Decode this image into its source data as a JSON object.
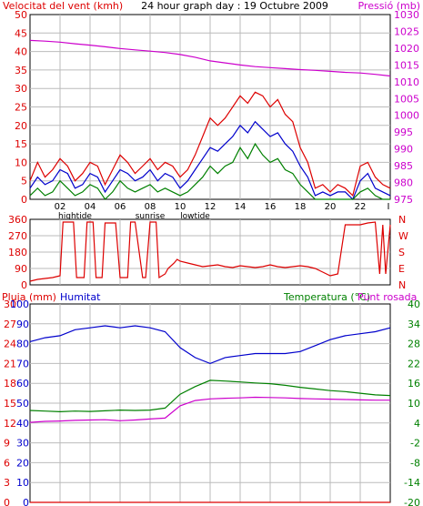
{
  "colors": {
    "red": "#dd0000",
    "blue": "#0000cc",
    "green": "#008000",
    "magenta": "#cc00cc",
    "grid": "#bbbbbb",
    "frame": "#000000"
  },
  "header": {
    "left": "Velocitat del vent (kmh)",
    "center": "24 hour graph day : 19 Octubre 2009",
    "right": "Pressió (mb)"
  },
  "x_ticks": [
    "02",
    "04",
    "06",
    "08",
    "10",
    "12",
    "14",
    "16",
    "18",
    "20",
    "22"
  ],
  "x_end": "I",
  "tide_labels": [
    {
      "text": "hightide",
      "hour": 3.0
    },
    {
      "text": "sunrise",
      "hour": 8.0
    },
    {
      "text": "lowtide",
      "hour": 11.0
    }
  ],
  "chart_data": [
    {
      "type": "line",
      "title": "24 hour graph day : 19 Octubre 2009",
      "y_left": {
        "label": "Velocitat del vent (kmh)",
        "range": [
          0,
          50
        ],
        "ticks": [
          0,
          5,
          10,
          15,
          20,
          25,
          30,
          35,
          40,
          45,
          50
        ]
      },
      "y_right": {
        "label": "Pressió (mb)",
        "range": [
          975,
          1030
        ],
        "ticks": [
          975,
          980,
          985,
          990,
          995,
          1000,
          1005,
          1010,
          1015,
          1020,
          1025,
          1030
        ]
      },
      "x_range": [
        0,
        24
      ],
      "pressure": {
        "axis": "right",
        "x": [
          0,
          1,
          2,
          3,
          4,
          5,
          6,
          7,
          8,
          9,
          10,
          11,
          12,
          13,
          14,
          15,
          16,
          17,
          18,
          19,
          20,
          21,
          22,
          23,
          24
        ],
        "values": [
          1022.3,
          1022.1,
          1021.8,
          1021.3,
          1020.9,
          1020.4,
          1019.9,
          1019.5,
          1019.1,
          1018.7,
          1018.1,
          1017.3,
          1016.2,
          1015.6,
          1015.0,
          1014.5,
          1014.2,
          1013.9,
          1013.6,
          1013.4,
          1013.1,
          1012.8,
          1012.6,
          1012.2,
          1011.7
        ]
      },
      "gust": {
        "axis": "left",
        "x": [
          0,
          0.5,
          1,
          1.5,
          2,
          2.5,
          3,
          3.5,
          4,
          4.5,
          5,
          5.5,
          6,
          6.5,
          7,
          7.5,
          8,
          8.5,
          9,
          9.5,
          10,
          10.5,
          11,
          11.5,
          12,
          12.5,
          13,
          13.5,
          14,
          14.5,
          15,
          15.5,
          16,
          16.5,
          17,
          17.5,
          18,
          18.5,
          19,
          19.5,
          20,
          20.5,
          21,
          21.5,
          22,
          22.5,
          23,
          23.5,
          24
        ],
        "values": [
          5,
          10,
          6,
          8,
          11,
          9,
          5,
          7,
          10,
          9,
          4,
          8,
          12,
          10,
          7,
          9,
          11,
          8,
          10,
          9,
          6,
          8,
          12,
          17,
          22,
          20,
          22,
          25,
          28,
          26,
          29,
          28,
          25,
          27,
          23,
          21,
          14,
          10,
          3,
          4,
          2,
          4,
          3,
          1,
          9,
          10,
          6,
          4,
          3
        ]
      },
      "wind_avg": {
        "axis": "left",
        "x": [
          0,
          0.5,
          1,
          1.5,
          2,
          2.5,
          3,
          3.5,
          4,
          4.5,
          5,
          5.5,
          6,
          6.5,
          7,
          7.5,
          8,
          8.5,
          9,
          9.5,
          10,
          10.5,
          11,
          11.5,
          12,
          12.5,
          13,
          13.5,
          14,
          14.5,
          15,
          15.5,
          16,
          16.5,
          17,
          17.5,
          18,
          18.5,
          19,
          19.5,
          20,
          20.5,
          21,
          21.5,
          22,
          22.5,
          23,
          23.5,
          24
        ],
        "values": [
          3,
          6,
          4,
          5,
          8,
          7,
          3,
          4,
          7,
          6,
          2,
          5,
          8,
          7,
          5,
          6,
          8,
          5,
          7,
          6,
          3,
          5,
          8,
          11,
          14,
          13,
          15,
          17,
          20,
          18,
          21,
          19,
          17,
          18,
          15,
          13,
          9,
          6,
          1,
          2,
          1,
          2,
          2,
          0,
          5,
          7,
          3,
          2,
          1
        ]
      },
      "wind_min": {
        "axis": "left",
        "x": [
          0,
          0.5,
          1,
          1.5,
          2,
          2.5,
          3,
          3.5,
          4,
          4.5,
          5,
          5.5,
          6,
          6.5,
          7,
          7.5,
          8,
          8.5,
          9,
          9.5,
          10,
          10.5,
          11,
          11.5,
          12,
          12.5,
          13,
          13.5,
          14,
          14.5,
          15,
          15.5,
          16,
          16.5,
          17,
          17.5,
          18,
          18.5,
          19,
          19.5,
          20,
          20.5,
          21,
          21.5,
          22,
          22.5,
          23,
          23.5,
          24
        ],
        "values": [
          1,
          3,
          1,
          2,
          5,
          3,
          1,
          2,
          4,
          3,
          0,
          2,
          5,
          3,
          2,
          3,
          4,
          2,
          3,
          2,
          1,
          2,
          4,
          6,
          9,
          7,
          9,
          10,
          14,
          11,
          15,
          12,
          10,
          11,
          8,
          7,
          4,
          2,
          0,
          0,
          0,
          0,
          0,
          0,
          2,
          3,
          1,
          0,
          0
        ]
      }
    },
    {
      "type": "line",
      "title": "",
      "y_left": {
        "label": "",
        "range": [
          0,
          360
        ],
        "ticks": [
          0,
          90,
          180,
          270,
          360
        ]
      },
      "y_right": {
        "label": "",
        "ticks": [
          "N",
          "E",
          "S",
          "W",
          "N"
        ]
      },
      "x_range": [
        0,
        24
      ],
      "direction": {
        "x": [
          0,
          0.5,
          1,
          1.5,
          2,
          2.2,
          2.9,
          3.1,
          3.6,
          3.8,
          4.2,
          4.4,
          4.8,
          5,
          5.7,
          6,
          6.5,
          6.7,
          7,
          7.5,
          7.7,
          8,
          8.4,
          8.6,
          9,
          9.2,
          9.6,
          9.8,
          10,
          10.5,
          11,
          11.5,
          12,
          12.5,
          13,
          13.5,
          14,
          14.5,
          15,
          15.5,
          16,
          16.5,
          17,
          17.5,
          18,
          18.5,
          19,
          19.5,
          20,
          20.5,
          21,
          21.5,
          22,
          22.5,
          23,
          23.3,
          23.5,
          23.7,
          24
        ],
        "values": [
          20,
          30,
          35,
          40,
          50,
          345,
          345,
          40,
          40,
          345,
          345,
          40,
          40,
          340,
          340,
          40,
          40,
          345,
          345,
          40,
          40,
          345,
          345,
          40,
          60,
          90,
          120,
          140,
          130,
          120,
          110,
          100,
          105,
          110,
          100,
          95,
          105,
          100,
          95,
          100,
          110,
          100,
          95,
          100,
          105,
          100,
          90,
          70,
          50,
          60,
          330,
          330,
          330,
          340,
          345,
          60,
          330,
          60,
          330
        ]
      }
    },
    {
      "type": "line",
      "title": "",
      "y_left_pluja": {
        "label": "Pluja (mm)",
        "range": [
          0,
          30
        ],
        "ticks": [
          0,
          3,
          6,
          9,
          12,
          15,
          18,
          21,
          24,
          27,
          30
        ]
      },
      "y_left_humitat": {
        "label": "Humitat",
        "range": [
          0,
          100
        ],
        "ticks": [
          0,
          10,
          20,
          30,
          40,
          50,
          60,
          70,
          80,
          90,
          100
        ]
      },
      "y_right": {
        "label": "Temperatura (°C)",
        "range": [
          -20,
          40
        ],
        "ticks": [
          -20,
          -14,
          -8,
          -2,
          4,
          10,
          16,
          22,
          28,
          34,
          40
        ]
      },
      "series_label_right_extra": "Punt rosada",
      "x_range": [
        0,
        24
      ],
      "humidity": {
        "axis": "humitat",
        "x": [
          0,
          1,
          2,
          3,
          4,
          5,
          6,
          7,
          8,
          9,
          10,
          11,
          12,
          13,
          14,
          15,
          16,
          17,
          18,
          19,
          20,
          21,
          22,
          23,
          24
        ],
        "values": [
          81,
          83,
          84,
          87,
          88,
          89,
          88,
          89,
          88,
          86,
          78,
          73,
          70,
          73,
          74,
          75,
          75,
          75,
          76,
          79,
          82,
          84,
          85,
          86,
          88
        ]
      },
      "temperature": {
        "axis": "right",
        "x": [
          0,
          1,
          2,
          3,
          4,
          5,
          6,
          7,
          8,
          9,
          10,
          11,
          12,
          13,
          14,
          15,
          16,
          17,
          18,
          19,
          20,
          21,
          22,
          23,
          24
        ],
        "values": [
          7.8,
          7.6,
          7.4,
          7.6,
          7.5,
          7.7,
          7.9,
          7.8,
          7.9,
          8.5,
          12.7,
          15.0,
          16.9,
          16.7,
          16.4,
          16.1,
          15.9,
          15.4,
          14.8,
          14.3,
          13.8,
          13.5,
          13.0,
          12.5,
          12.3
        ]
      },
      "dew_point": {
        "axis": "right",
        "x": [
          0,
          1,
          2,
          3,
          4,
          5,
          6,
          7,
          8,
          9,
          10,
          11,
          12,
          13,
          14,
          15,
          16,
          17,
          18,
          19,
          20,
          21,
          22,
          23,
          24
        ],
        "values": [
          4.2,
          4.5,
          4.6,
          4.8,
          4.9,
          5.0,
          4.7,
          4.9,
          5.2,
          5.5,
          9.2,
          10.8,
          11.3,
          11.5,
          11.6,
          11.8,
          11.7,
          11.6,
          11.4,
          11.3,
          11.2,
          11.1,
          11.0,
          10.9,
          10.9
        ]
      },
      "rain": {
        "axis": "pluja",
        "x": [
          0,
          24
        ],
        "values": [
          0,
          0
        ]
      }
    }
  ]
}
